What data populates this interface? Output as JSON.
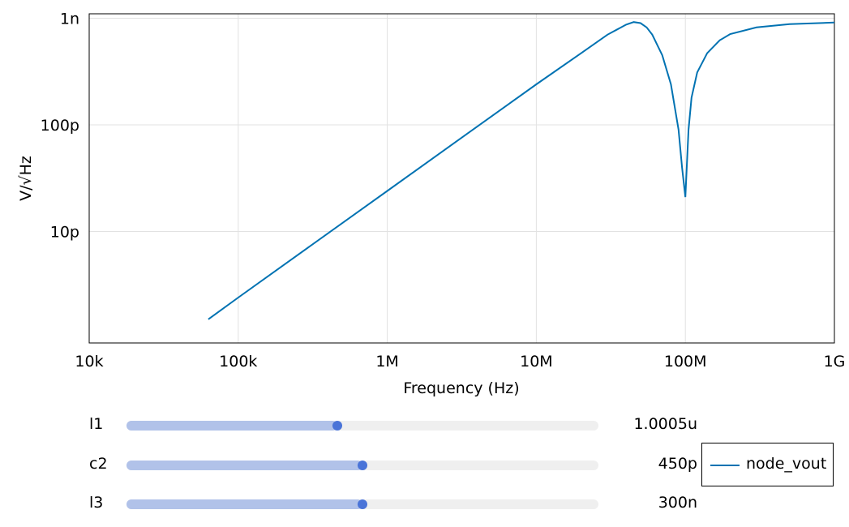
{
  "chart_data": {
    "type": "line",
    "xlabel": "Frequency (Hz)",
    "ylabel": "V/√Hz",
    "xscale": "log",
    "yscale": "log",
    "xlim": [
      10000,
      1000000000
    ],
    "ylim": [
      9e-13,
      1.1e-09
    ],
    "grid": true,
    "x_ticks": [
      {
        "value": 10000,
        "label": "10k"
      },
      {
        "value": 100000,
        "label": "100k"
      },
      {
        "value": 1000000,
        "label": "1M"
      },
      {
        "value": 10000000,
        "label": "10M"
      },
      {
        "value": 100000000,
        "label": "100M"
      },
      {
        "value": 1000000000,
        "label": "1G"
      }
    ],
    "y_ticks": [
      {
        "value": 1e-11,
        "label": "10p"
      },
      {
        "value": 1e-10,
        "label": "100p"
      },
      {
        "value": 1e-09,
        "label": "1n"
      }
    ],
    "series": [
      {
        "name": "node_vout",
        "color": "#0072b2",
        "x": [
          63000,
          100000,
          300000,
          1000000,
          3000000,
          10000000,
          20000000,
          30000000,
          40000000,
          45000000,
          50000000,
          55000000,
          60000000,
          70000000,
          80000000,
          90000000,
          95000000,
          100000000,
          105000000,
          110000000,
          120000000,
          140000000,
          170000000,
          200000000,
          300000000,
          500000000,
          1000000000
        ],
        "y": [
          1.5e-12,
          2.4e-12,
          7.2e-12,
          2.4e-11,
          7.2e-11,
          2.4e-10,
          4.7e-10,
          7e-10,
          8.7e-10,
          9.2e-10,
          9e-10,
          8.2e-10,
          7e-10,
          4.5e-10,
          2.4e-10,
          9e-11,
          4e-11,
          2.1e-11,
          9e-11,
          1.8e-10,
          3.1e-10,
          4.7e-10,
          6.2e-10,
          7.1e-10,
          8.2e-10,
          8.8e-10,
          9.1e-10
        ]
      }
    ],
    "legend": {
      "position": "bottom-right",
      "entries": [
        "node_vout"
      ]
    }
  },
  "sliders": [
    {
      "name": "l1",
      "value_label": "1.0005u",
      "fraction": 0.446
    },
    {
      "name": "c2",
      "value_label": "450p",
      "fraction": 0.5
    },
    {
      "name": "l3",
      "value_label": "300n",
      "fraction": 0.5
    }
  ],
  "colors": {
    "line": "#0072b2",
    "slider_fill": "#b1c2e9",
    "slider_knob": "#4a74d8",
    "slider_track": "#efefef"
  }
}
